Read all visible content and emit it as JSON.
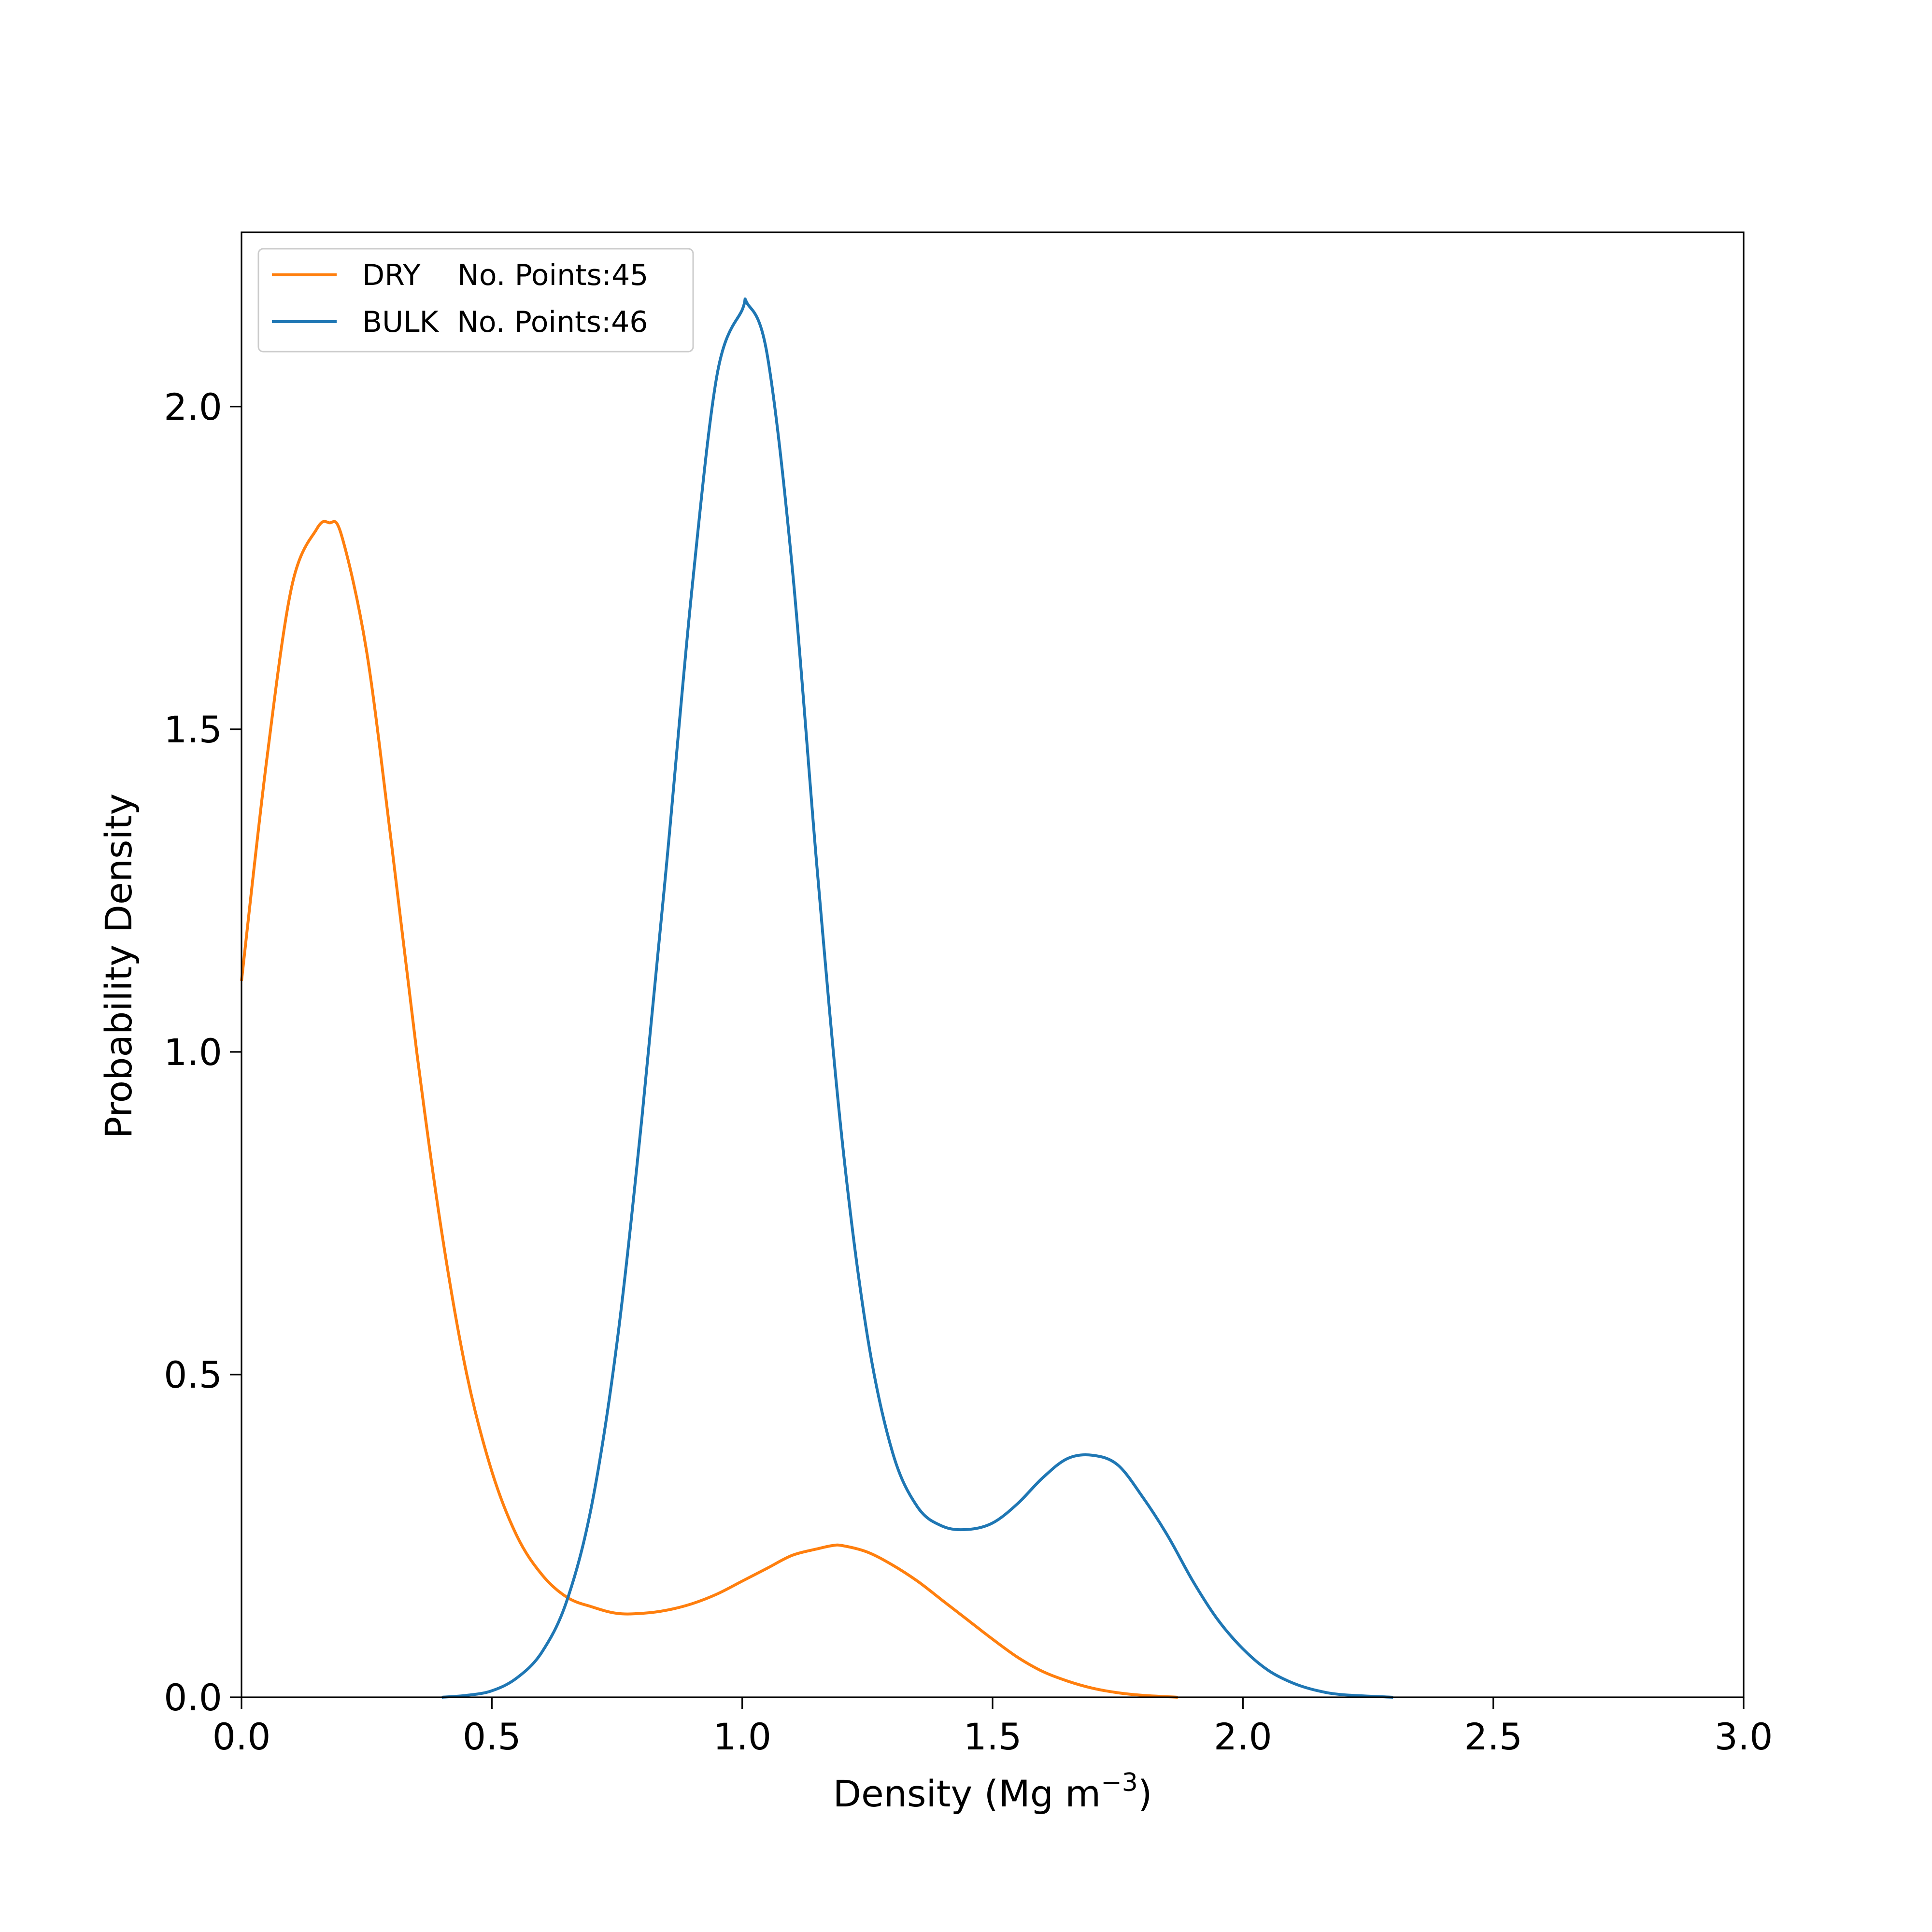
{
  "chart_data": {
    "type": "line",
    "title": "",
    "xlabel": "Density (Mg m",
    "xlabel_sup": "−3",
    "xlabel_close": ")",
    "ylabel": "Probability Density",
    "xlim": [
      0.0,
      3.0
    ],
    "ylim": [
      0.0,
      2.27
    ],
    "grid": false,
    "legend_position": "top-left",
    "xticks": [
      0.0,
      0.5,
      1.0,
      1.5,
      2.0,
      2.5,
      3.0
    ],
    "xtick_labels": [
      "0.0",
      "0.5",
      "1.0",
      "1.5",
      "2.0",
      "2.5",
      "3.0"
    ],
    "yticks": [
      0.0,
      0.5,
      1.0,
      1.5,
      2.0
    ],
    "ytick_labels": [
      "0.0",
      "0.5",
      "1.0",
      "1.5",
      "2.0"
    ],
    "series": [
      {
        "name": "DRY",
        "legend_label": "DRY    No. Points:45",
        "color": "#ff7f0e",
        "x": [
          0.0,
          0.05,
          0.1,
          0.15,
          0.175,
          0.2,
          0.25,
          0.3,
          0.35,
          0.4,
          0.45,
          0.5,
          0.55,
          0.6,
          0.65,
          0.7,
          0.75,
          0.8,
          0.85,
          0.9,
          0.95,
          1.0,
          1.05,
          1.1,
          1.15,
          1.18,
          1.2,
          1.25,
          1.3,
          1.35,
          1.4,
          1.45,
          1.5,
          1.55,
          1.6,
          1.65,
          1.7,
          1.75,
          1.8,
          1.87
        ],
        "y": [
          1.11,
          1.45,
          1.72,
          1.81,
          1.82,
          1.8,
          1.62,
          1.32,
          1.0,
          0.72,
          0.5,
          0.35,
          0.25,
          0.19,
          0.155,
          0.14,
          0.13,
          0.13,
          0.135,
          0.145,
          0.16,
          0.18,
          0.2,
          0.22,
          0.23,
          0.235,
          0.235,
          0.225,
          0.205,
          0.18,
          0.15,
          0.12,
          0.09,
          0.062,
          0.04,
          0.025,
          0.014,
          0.007,
          0.003,
          0.0
        ]
      },
      {
        "name": "BULK",
        "legend_label": "BULK  No. Points:46",
        "color": "#1f77b4",
        "x": [
          0.4,
          0.45,
          0.5,
          0.55,
          0.6,
          0.65,
          0.7,
          0.75,
          0.8,
          0.85,
          0.9,
          0.95,
          1.0,
          1.01,
          1.05,
          1.1,
          1.15,
          1.2,
          1.25,
          1.3,
          1.35,
          1.4,
          1.45,
          1.5,
          1.55,
          1.6,
          1.65,
          1.7,
          1.75,
          1.8,
          1.85,
          1.9,
          1.95,
          2.0,
          2.05,
          2.1,
          2.15,
          2.2,
          2.3
        ],
        "y": [
          0.0,
          0.003,
          0.01,
          0.03,
          0.07,
          0.15,
          0.3,
          0.55,
          0.9,
          1.3,
          1.72,
          2.05,
          2.15,
          2.16,
          2.08,
          1.75,
          1.28,
          0.86,
          0.56,
          0.38,
          0.295,
          0.265,
          0.26,
          0.27,
          0.3,
          0.34,
          0.37,
          0.375,
          0.36,
          0.31,
          0.25,
          0.18,
          0.12,
          0.075,
          0.042,
          0.022,
          0.01,
          0.004,
          0.0
        ]
      }
    ]
  }
}
